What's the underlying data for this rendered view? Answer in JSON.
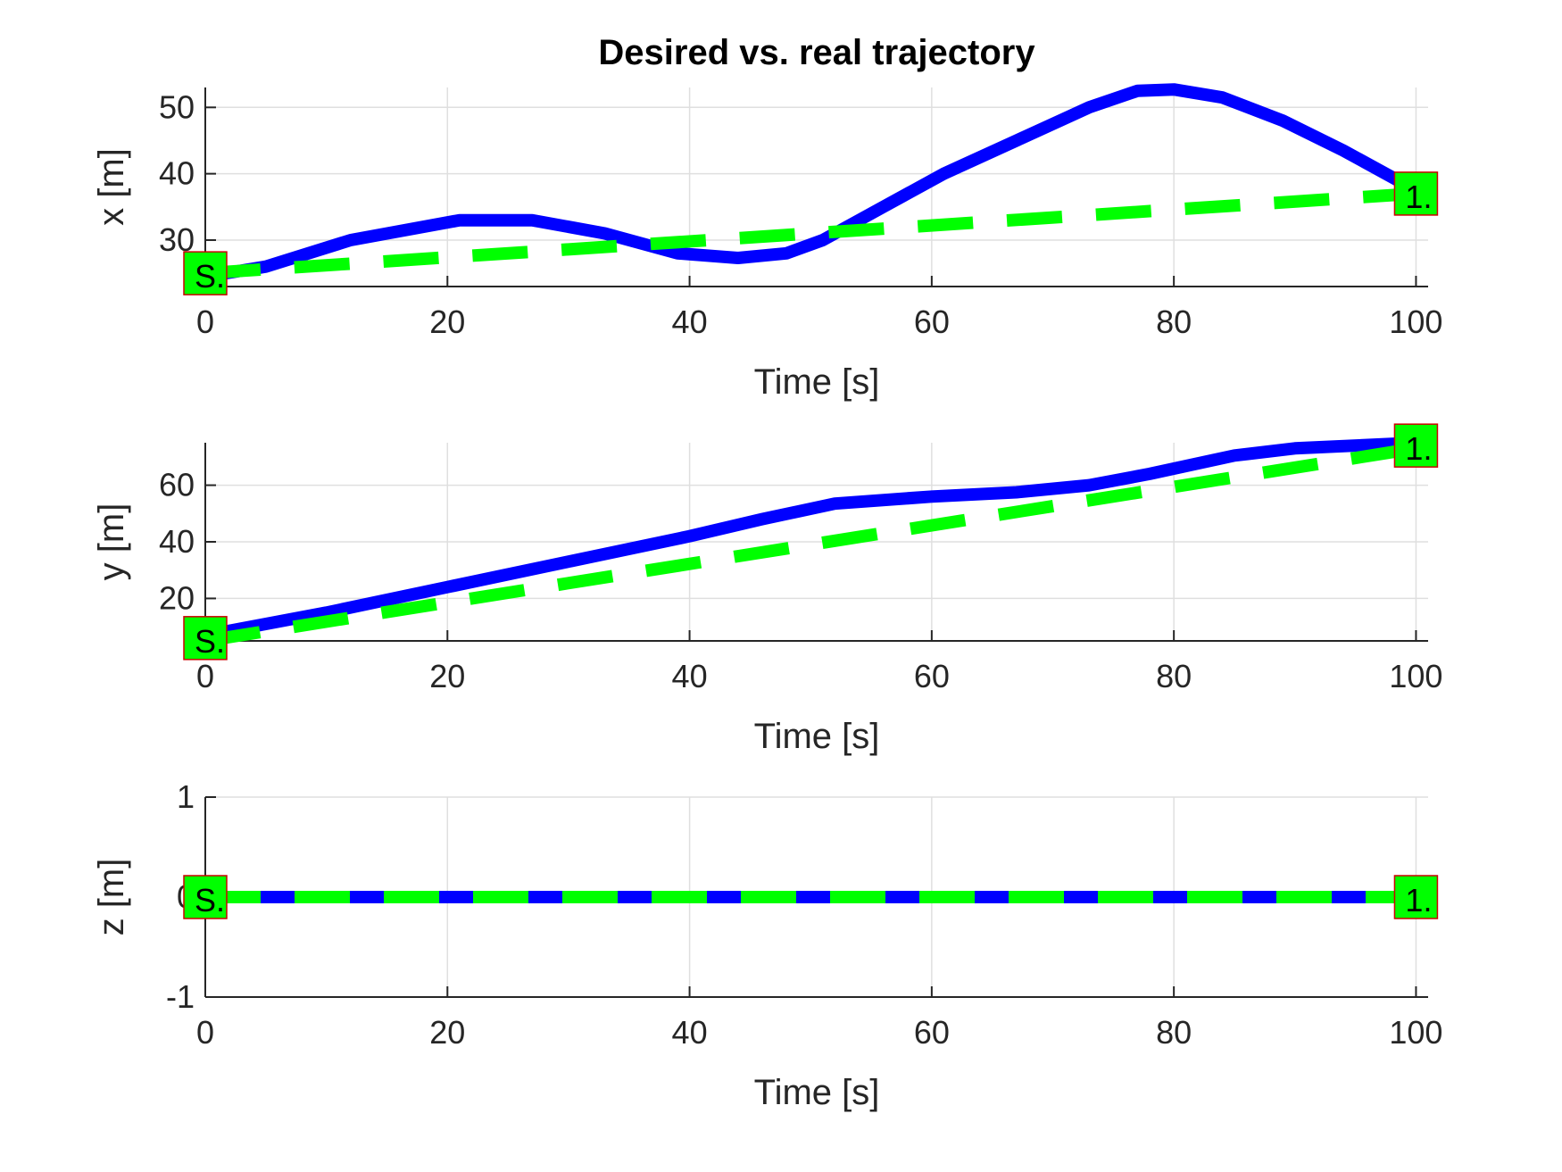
{
  "chart_data": [
    {
      "type": "line",
      "title": "Desired vs. real trajectory",
      "xlabel": "Time [s]",
      "ylabel": "x [m]",
      "xlim": [
        0,
        101
      ],
      "ylim": [
        23,
        53
      ],
      "xticks": [
        0,
        20,
        40,
        60,
        80,
        100
      ],
      "yticks": [
        30,
        40,
        50
      ],
      "grid": true,
      "series": [
        {
          "role": "real",
          "color": "#0000ff",
          "style": "solid",
          "x": [
            0,
            5,
            12,
            21,
            27,
            33,
            39,
            44,
            48,
            51,
            56,
            61,
            67,
            73,
            77,
            80,
            84,
            89,
            94,
            100
          ],
          "y": [
            24.5,
            26,
            30,
            33,
            33,
            31,
            28,
            27.3,
            28,
            30,
            35,
            40,
            45,
            50,
            52.5,
            52.7,
            51.5,
            48,
            43.5,
            37.5
          ]
        },
        {
          "role": "desired",
          "color": "#00ff00",
          "style": "dashed",
          "x": [
            0,
            100
          ],
          "y": [
            25,
            37
          ]
        }
      ],
      "markers": [
        {
          "x": 0,
          "y": 25,
          "text": "S."
        },
        {
          "x": 100,
          "y": 37,
          "text": "1."
        }
      ]
    },
    {
      "type": "line",
      "title": "",
      "xlabel": "Time [s]",
      "ylabel": "y [m]",
      "xlim": [
        0,
        101
      ],
      "ylim": [
        5,
        75
      ],
      "xticks": [
        0,
        20,
        40,
        60,
        80,
        100
      ],
      "yticks": [
        20,
        40,
        60
      ],
      "grid": true,
      "series": [
        {
          "role": "real",
          "color": "#0000ff",
          "style": "solid",
          "x": [
            0,
            10,
            20,
            30,
            40,
            46,
            52,
            60,
            67,
            73,
            78,
            85,
            90,
            100
          ],
          "y": [
            7,
            15,
            24,
            33,
            42,
            48,
            53.5,
            56,
            57.5,
            60,
            64,
            70.5,
            73,
            75
          ]
        },
        {
          "role": "desired",
          "color": "#00ff00",
          "style": "dashed",
          "x": [
            0,
            100
          ],
          "y": [
            5,
            73
          ]
        }
      ],
      "markers": [
        {
          "x": 0,
          "y": 6,
          "text": "S."
        },
        {
          "x": 100,
          "y": 74,
          "text": "1."
        }
      ]
    },
    {
      "type": "line",
      "title": "",
      "xlabel": "Time [s]",
      "ylabel": "z [m]",
      "xlim": [
        0,
        101
      ],
      "ylim": [
        -1,
        1
      ],
      "xticks": [
        0,
        20,
        40,
        60,
        80,
        100
      ],
      "yticks": [
        -1,
        0,
        1
      ],
      "grid": true,
      "series": [
        {
          "role": "real",
          "color": "#0000ff",
          "style": "solid",
          "x": [
            0,
            100
          ],
          "y": [
            0,
            0
          ]
        },
        {
          "role": "desired",
          "color": "#00ff00",
          "style": "dashed",
          "x": [
            0,
            100
          ],
          "y": [
            0,
            0
          ]
        }
      ],
      "markers": [
        {
          "x": 0,
          "y": 0,
          "text": "S."
        },
        {
          "x": 100,
          "y": 0,
          "text": "1."
        }
      ]
    }
  ]
}
